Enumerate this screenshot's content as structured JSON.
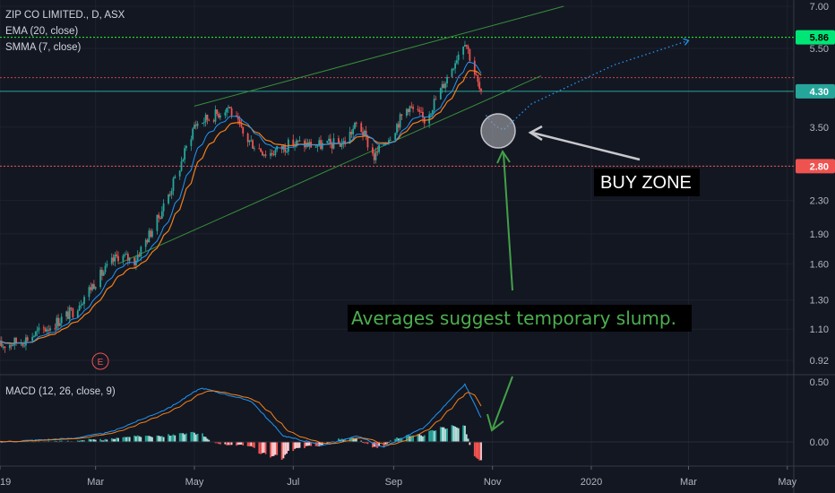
{
  "symbol_title": "ZIP CO LIMITED., D, ASX",
  "indicators": {
    "ema_label": "EMA (20, close)",
    "smma_label": "SMMA (7, close)",
    "macd_label": "MACD (12, 26, close, 9)"
  },
  "earnings_marker": "E",
  "annotations": {
    "buy_zone": "BUY ZONE",
    "averages_note": "Averages suggest temporary slump."
  },
  "price_tags": [
    {
      "label": "5.86",
      "value": 5.86,
      "color": "#26a69a",
      "style": "dotted-green"
    },
    {
      "label": "4.30",
      "value": 4.3,
      "color": "#26a69a",
      "style": "solid-teal"
    },
    {
      "label": "2.80",
      "value": 2.8,
      "color": "#ef5350",
      "style": "dotted-red"
    }
  ],
  "colors": {
    "background": "#131722",
    "up": "#26a69a",
    "down": "#ef5350",
    "ema": "#f57f17",
    "smma": "#2196f3",
    "channel": "#388e3c",
    "note_green": "#4caf50"
  },
  "chart_data": [
    {
      "type": "candlestick",
      "title": "ZIP CO LIMITED., D, ASX",
      "y_scale": "log",
      "y_ticks": [
        "7.00",
        "5.50",
        "4.30",
        "3.50",
        "2.80",
        "2.30",
        "1.90",
        "1.60",
        "1.30",
        "1.10",
        "0.92"
      ],
      "x_ticks": [
        "2019",
        "Mar",
        "May",
        "Jul",
        "Sep",
        "Nov",
        "2020",
        "Mar",
        "May"
      ],
      "ylim": [
        0.92,
        7.0
      ],
      "x_range": [
        "2019-01-01",
        "2020-05-05"
      ],
      "series": [
        {
          "name": "EMA (20, close)"
        },
        {
          "name": "SMMA (7, close)"
        }
      ],
      "close_path": [
        {
          "date": "2019-01-01",
          "close": 1.0
        },
        {
          "date": "2019-01-15",
          "close": 1.03
        },
        {
          "date": "2019-02-01",
          "close": 1.12
        },
        {
          "date": "2019-02-15",
          "close": 1.22
        },
        {
          "date": "2019-03-01",
          "close": 1.45
        },
        {
          "date": "2019-03-15",
          "close": 1.68
        },
        {
          "date": "2019-03-25",
          "close": 1.63
        },
        {
          "date": "2019-04-08",
          "close": 2.05
        },
        {
          "date": "2019-04-20",
          "close": 2.65
        },
        {
          "date": "2019-05-01",
          "close": 3.55
        },
        {
          "date": "2019-05-15",
          "close": 3.78
        },
        {
          "date": "2019-05-22",
          "close": 3.95
        },
        {
          "date": "2019-06-01",
          "close": 3.3
        },
        {
          "date": "2019-06-15",
          "close": 3.0
        },
        {
          "date": "2019-07-01",
          "close": 3.2
        },
        {
          "date": "2019-07-15",
          "close": 3.15
        },
        {
          "date": "2019-08-01",
          "close": 3.2
        },
        {
          "date": "2019-08-10",
          "close": 3.6
        },
        {
          "date": "2019-08-20",
          "close": 2.95
        },
        {
          "date": "2019-09-01",
          "close": 3.45
        },
        {
          "date": "2019-09-10",
          "close": 3.95
        },
        {
          "date": "2019-09-20",
          "close": 3.65
        },
        {
          "date": "2019-10-01",
          "close": 4.4
        },
        {
          "date": "2019-10-15",
          "close": 5.8
        },
        {
          "date": "2019-10-25",
          "close": 4.2
        }
      ],
      "channel_lines": [
        {
          "from": {
            "date": "2019-05-01",
            "price": 3.95
          },
          "to": {
            "date": "2019-12-15",
            "price": 7.0
          }
        },
        {
          "from": {
            "date": "2019-03-15",
            "price": 1.6
          },
          "to": {
            "date": "2019-12-01",
            "price": 4.7
          }
        }
      ],
      "projection": [
        {
          "date": "2019-10-28",
          "price": 3.75
        },
        {
          "date": "2019-11-08",
          "price": 3.45
        },
        {
          "date": "2019-11-25",
          "price": 4.0
        },
        {
          "date": "2020-01-15",
          "price": 5.0
        },
        {
          "date": "2020-03-01",
          "price": 5.75
        }
      ]
    },
    {
      "type": "histogram",
      "title": "MACD (12, 26, close, 9)",
      "y_ticks": [
        "0.50",
        "0.00"
      ],
      "ylim": [
        -0.15,
        0.55
      ],
      "series": [
        {
          "name": "MACD",
          "color": "#2196f3"
        },
        {
          "name": "Signal",
          "color": "#f57f17"
        }
      ],
      "macd_path": [
        {
          "date": "2019-01-01",
          "value": 0.0
        },
        {
          "date": "2019-02-15",
          "value": 0.03
        },
        {
          "date": "2019-03-10",
          "value": 0.08
        },
        {
          "date": "2019-04-15",
          "value": 0.28
        },
        {
          "date": "2019-05-05",
          "value": 0.45
        },
        {
          "date": "2019-06-05",
          "value": 0.34
        },
        {
          "date": "2019-06-25",
          "value": 0.05
        },
        {
          "date": "2019-07-20",
          "value": -0.03
        },
        {
          "date": "2019-08-10",
          "value": 0.05
        },
        {
          "date": "2019-08-25",
          "value": -0.05
        },
        {
          "date": "2019-09-20",
          "value": 0.12
        },
        {
          "date": "2019-10-15",
          "value": 0.48
        },
        {
          "date": "2019-10-25",
          "value": 0.2
        }
      ]
    }
  ]
}
